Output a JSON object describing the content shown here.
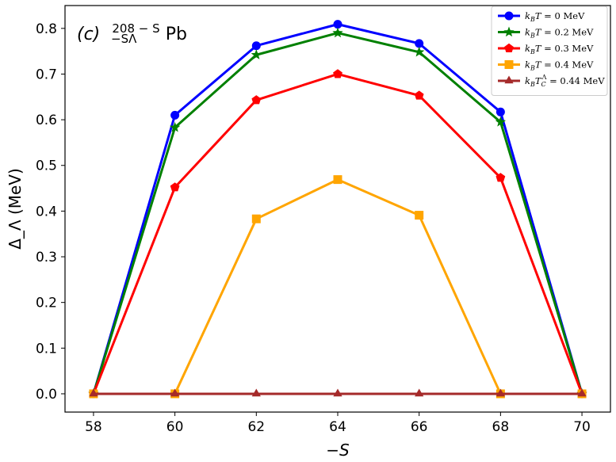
{
  "chart_data": {
    "type": "line",
    "title": "",
    "annotation": {
      "label": "(c)",
      "superscript": "208 − S",
      "subscript": "−SΛ",
      "element": "Pb"
    },
    "xlabel": "−S",
    "ylabel": "Δ_Λ (MeV)",
    "xlim": [
      57.3,
      70.7
    ],
    "ylim": [
      -0.04,
      0.85
    ],
    "x": [
      58,
      60,
      62,
      64,
      66,
      68,
      70
    ],
    "xticks": [
      "58",
      "60",
      "62",
      "64",
      "66",
      "68",
      "70"
    ],
    "yticks": [
      "0.0",
      "0.1",
      "0.2",
      "0.3",
      "0.4",
      "0.5",
      "0.6",
      "0.7",
      "0.8"
    ],
    "legend_position": "top-right",
    "series": [
      {
        "name": "k_B T = 0 MeV",
        "label_var": "k",
        "label_sub": "B",
        "label_var2": "T",
        "label_rest": " = 0 MeV",
        "color": "#0000ff",
        "marker": "circle",
        "values": [
          0.0,
          0.61,
          0.762,
          0.809,
          0.767,
          0.617,
          0.0
        ]
      },
      {
        "name": "k_B T = 0.2 MeV",
        "label_var": "k",
        "label_sub": "B",
        "label_var2": "T",
        "label_rest": " = 0.2 MeV",
        "color": "#008000",
        "marker": "star",
        "values": [
          0.0,
          0.583,
          0.742,
          0.79,
          0.748,
          0.595,
          0.0
        ]
      },
      {
        "name": "k_B T = 0.3 MeV",
        "label_var": "k",
        "label_sub": "B",
        "label_var2": "T",
        "label_rest": " = 0.3 MeV",
        "color": "#ff0000",
        "marker": "pentagon",
        "values": [
          0.0,
          0.452,
          0.643,
          0.7,
          0.653,
          0.473,
          0.0
        ]
      },
      {
        "name": "k_B T = 0.4 MeV",
        "label_var": "k",
        "label_sub": "B",
        "label_var2": "T",
        "label_rest": " = 0.4 MeV",
        "color": "#ffa500",
        "marker": "square",
        "values": [
          0.0,
          0.0,
          0.383,
          0.469,
          0.391,
          0.0,
          0.0
        ]
      },
      {
        "name": "k_B T_C^Λ = 0.44 MeV",
        "label_var": "k",
        "label_sub": "B",
        "label_var2": "T",
        "label_sub2": "C",
        "label_sup2": "Λ",
        "label_rest": " = 0.44 MeV",
        "color": "#a52a2a",
        "marker": "triangle",
        "values": [
          0.0,
          0.0,
          0.0,
          0.0,
          0.0,
          0.0,
          0.0
        ]
      }
    ]
  }
}
